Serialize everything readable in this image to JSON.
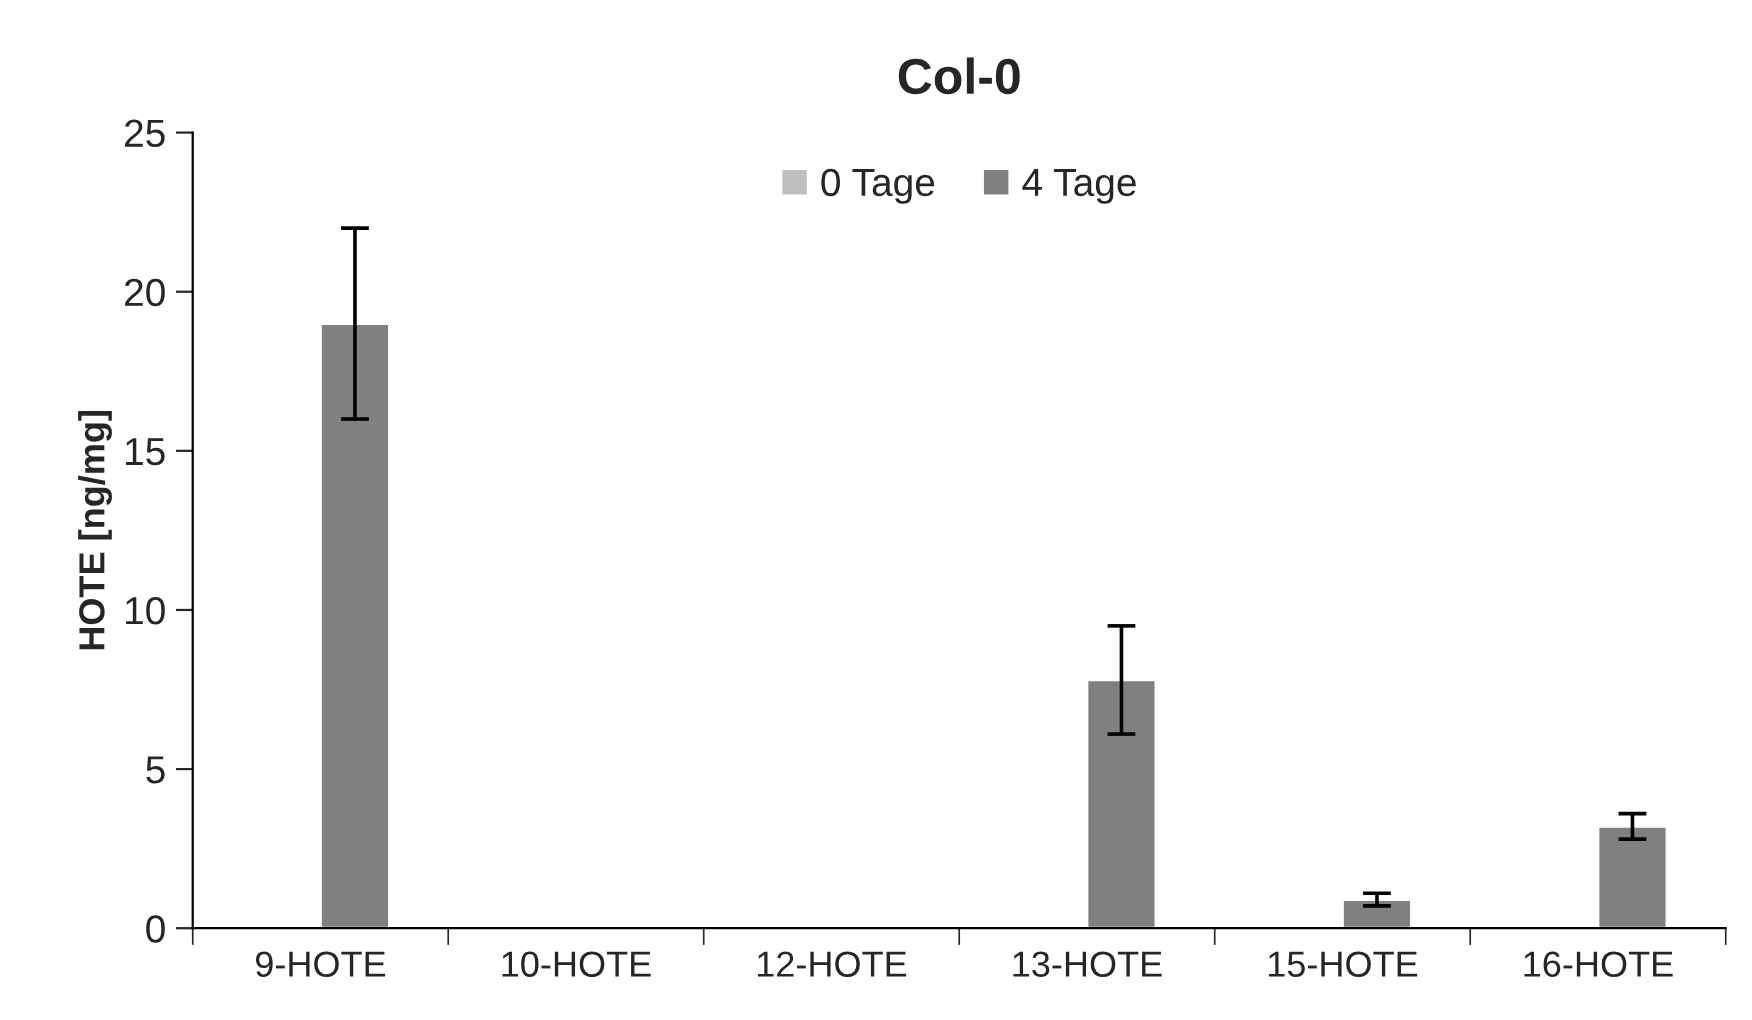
{
  "chart_data": {
    "type": "bar",
    "title": "Col-0",
    "ylabel": "HOTE [ng/mg]",
    "categories": [
      "9-HOTE",
      "10-HOTE",
      "12-HOTE",
      "13-HOTE",
      "15-HOTE",
      "16-HOTE"
    ],
    "series": [
      {
        "name": "0 Tage",
        "color": "#bfbfbf",
        "values": [
          null,
          null,
          null,
          null,
          null,
          null
        ]
      },
      {
        "name": "4 Tage",
        "color": "#808080",
        "values": [
          19,
          0.02,
          0.02,
          7.8,
          0.9,
          3.2
        ],
        "errors": [
          3,
          null,
          null,
          1.7,
          0.2,
          0.4
        ]
      }
    ],
    "ylim": [
      0,
      25
    ],
    "yticks": [
      0,
      5,
      10,
      15,
      20,
      25
    ],
    "grid": false,
    "legend": "top"
  }
}
